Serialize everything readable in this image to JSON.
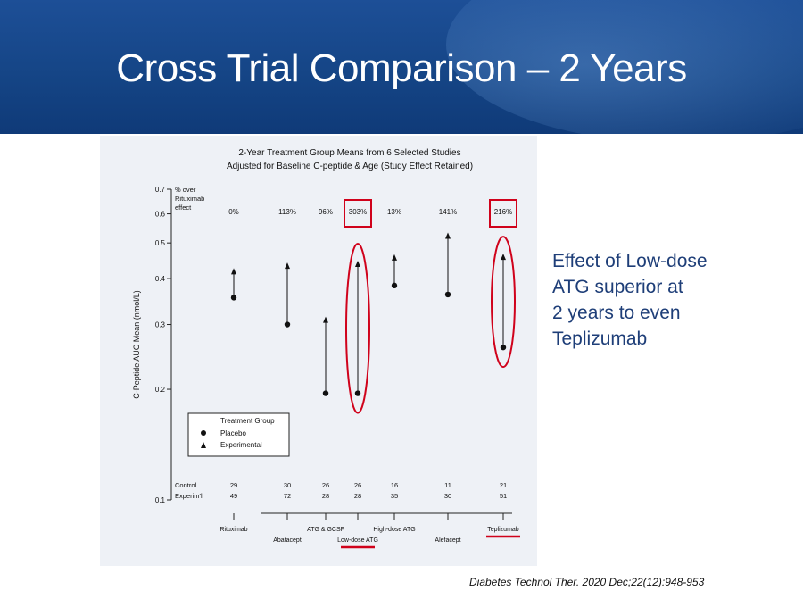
{
  "slide": {
    "title": "Cross Trial Comparison – 2 Years",
    "side_note": [
      "Effect of Low-dose",
      "ATG superior at",
      "2 years to even",
      "Teplizumab"
    ],
    "citation": "Diabetes Technol Ther. 2020 Dec;22(12):948-953"
  },
  "colors": {
    "header": "#154586",
    "highlight": "#d0021b",
    "side_note": "#1e3e78"
  },
  "chart_data": {
    "type": "scatter",
    "title": "2-Year Treatment Group Means from 6 Selected Studies",
    "subtitle": "Adjusted for Baseline C-peptide & Age (Study Effect Retained)",
    "ylabel": "C-Peptide AUC Mean  (nmol/L)",
    "y_scale": "log",
    "ylim": [
      0.1,
      0.7
    ],
    "yticks": [
      0.1,
      0.2,
      0.3,
      0.4,
      0.5,
      0.6,
      0.7
    ],
    "pct_header": [
      "% over",
      "Rituximab",
      "effect"
    ],
    "studies": [
      "Rituximab",
      "Abatacept",
      "ATG & GCSF",
      "Low-dose ATG",
      "High-dose ATG",
      "Alefacept",
      "Teplizumab"
    ],
    "series": [
      {
        "name": "Placebo",
        "values": [
          0.355,
          0.3,
          0.195,
          0.195,
          0.383,
          0.362,
          0.26
        ]
      },
      {
        "name": "Experimental",
        "values": [
          0.42,
          0.435,
          0.31,
          0.44,
          0.458,
          0.525,
          0.46
        ]
      }
    ],
    "pct_over_rituximab": [
      "0%",
      "113%",
      "96%",
      "303%",
      "13%",
      "141%",
      "216%"
    ],
    "highlighted": [
      "Low-dose ATG",
      "Teplizumab"
    ],
    "sample_sizes": {
      "Control": [
        29,
        30,
        26,
        26,
        16,
        11,
        21
      ],
      "Experim'l": [
        49,
        72,
        28,
        28,
        35,
        30,
        51
      ]
    },
    "legend": {
      "title": "Treatment Group",
      "entries": [
        "Placebo",
        "Experimental"
      ],
      "position": "bottom-left"
    }
  }
}
